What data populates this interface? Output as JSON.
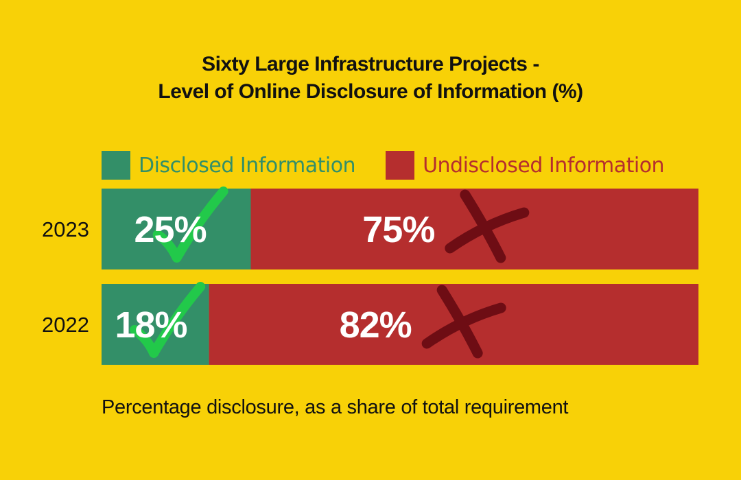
{
  "colors": {
    "background": "#f8d107",
    "disclosed": "#338f68",
    "undisclosed": "#b52e2e",
    "check": "#22c94a",
    "cross": "#6e0d14"
  },
  "icons": {
    "disclosed_mark": "check-icon",
    "undisclosed_mark": "cross-icon"
  },
  "chart_data": {
    "type": "bar",
    "orientation": "horizontal",
    "stacked": true,
    "title": "Sixty Large Infrastructure Projects -\nLevel of Online Disclosure of Information (%)",
    "title_lines": [
      "Sixty Large Infrastructure Projects -",
      "Level of Online Disclosure of Information (%)"
    ],
    "categories": [
      "2023",
      "2022"
    ],
    "series": [
      {
        "name": "Disclosed Information",
        "values": [
          25,
          18
        ],
        "labels": [
          "25%",
          "18%"
        ]
      },
      {
        "name": "Undisclosed Information",
        "values": [
          75,
          82
        ],
        "labels": [
          "75%",
          "82%"
        ]
      }
    ],
    "xlim": [
      0,
      100
    ],
    "grid": false,
    "legend_position": "top-left",
    "caption": "Percentage disclosure, as a share of total requirement"
  }
}
